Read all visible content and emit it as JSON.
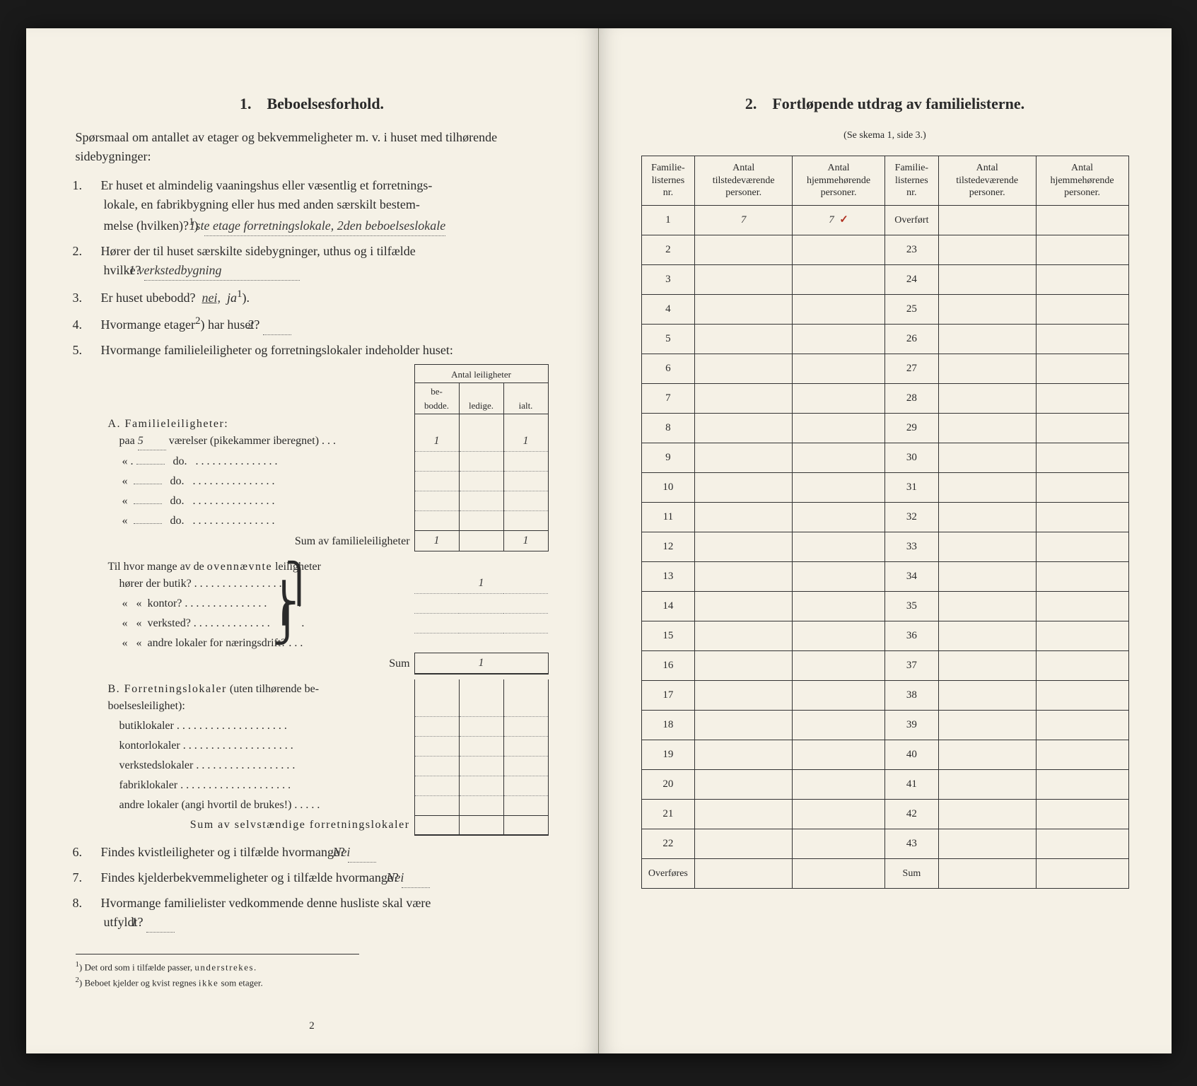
{
  "left": {
    "section_num": "1.",
    "section_title": "Beboelsesforhold.",
    "intro": "Spørsmaal om antallet av etager og bekvemmeligheter m. v. i huset med tilhørende sidebygninger:",
    "q1_a": "Er huset et almindelig vaaningshus eller væsentlig et forretnings-",
    "q1_b": "lokale, en fabrikbygning eller hus med anden særskilt bestem-",
    "q1_c": "melse (hvilken)?",
    "q1_sup": "1",
    "q1_ans": "1ste etage forretningslokale, 2den beboelseslokale",
    "q2_a": "Hører der til huset særskilte sidebygninger, uthus og i tilfælde",
    "q2_b": "hvilke?",
    "q2_ans": "1 verkstedbygning",
    "q3": "Er huset ubebodd?",
    "q3_nei": "nei,",
    "q3_ja": "ja",
    "q3_sup": "1",
    "q4": "Hvormange etager",
    "q4_sup": "2",
    "q4_b": "har huset?",
    "q4_ans": "2",
    "q5": "Hvormange familieleiligheter og forretningslokaler indeholder huset:",
    "col_header_top": "Antal leiligheter",
    "col_be": "be-\nbodde.",
    "col_ledige": "ledige.",
    "col_ialt": "ialt.",
    "secA_title": "A. Familieleiligheter:",
    "secA_row1_a": "paa",
    "secA_row1_val": "5",
    "secA_row1_b": "værelser (pikekammer iberegnet) . . .",
    "do": "do.",
    "quote": "«",
    "sumA": "Sum av familieleiligheter",
    "a_be": "1",
    "a_ialt": "1",
    "tilhvor": "Til hvor mange av de ",
    "ovennavnte": "ovennævnte",
    "tilhvor_b": " leiligheter",
    "horer_butik": "hører der butik? . . . . . . . . . . . . . . . .",
    "horer_kontor": "kontor? . . . . . . . . . . . . . . .",
    "horer_verksted": "verksted? . . . . . . . . . . . . . .",
    "horer_andre": "andre lokaler for næringsdrift? . . .",
    "butik_val": "1",
    "sum_label": "Sum",
    "sum_val": "1",
    "secB_title": "B. Forretningslokaler",
    "secB_sub": " (uten tilhørende be-\nboelsesleilighet):",
    "b_butik": "butiklokaler . . . . . . . . . . . . . . . . . . . .",
    "b_kontor": "kontorlokaler . . . . . . . . . . . . . . . . . . . .",
    "b_verksted": "verkstedslokaler . . . . . . . . . . . . . . . . . .",
    "b_fabrik": "fabriklokaler . . . . . . . . . . . . . . . . . . . .",
    "b_andre": "andre lokaler (angi hvortil de brukes!) . . . . .",
    "sumB": "Sum av selvstændige forretningslokaler",
    "q6": "Findes kvistleiligheter og i tilfælde hvormange?",
    "q6_ans": "Nei",
    "q7": "Findes kjelderbekvemmeligheter og i tilfælde hvormange?",
    "q7_ans": "Nei",
    "q8_a": "Hvormange familielister vedkommende denne husliste skal være",
    "q8_b": "utfyldt?",
    "q8_ans": "1",
    "fn1_sup": "1",
    "fn1": "Det ord som i tilfælde passer, ",
    "fn1_u": "understrekes.",
    "fn2_sup": "2",
    "fn2": "Beboet kjelder og kvist regnes ",
    "fn2_b": "ikke",
    "fn2_c": " som etager.",
    "pagenum": "2"
  },
  "right": {
    "section_num": "2.",
    "section_title": "Fortløpende utdrag av familielisterne.",
    "subtitle": "(Se skema 1, side 3.)",
    "h_nr": "Familie-\nlisternes\nnr.",
    "h_tilstede": "Antal\ntilstedeværende\npersoner.",
    "h_hjemme": "Antal\nhjemmehørende\npersoner.",
    "overfort": "Overført",
    "overfores": "Overføres",
    "sum": "Sum",
    "row1_tilstede": "7",
    "row1_hjemme": "7",
    "check": "✓",
    "left_rows": [
      "1",
      "2",
      "3",
      "4",
      "5",
      "6",
      "7",
      "8",
      "9",
      "10",
      "11",
      "12",
      "13",
      "14",
      "15",
      "16",
      "17",
      "18",
      "19",
      "20",
      "21",
      "22"
    ],
    "right_rows": [
      "23",
      "24",
      "25",
      "26",
      "27",
      "28",
      "29",
      "30",
      "31",
      "32",
      "33",
      "34",
      "35",
      "36",
      "37",
      "38",
      "39",
      "40",
      "41",
      "42",
      "43"
    ]
  }
}
